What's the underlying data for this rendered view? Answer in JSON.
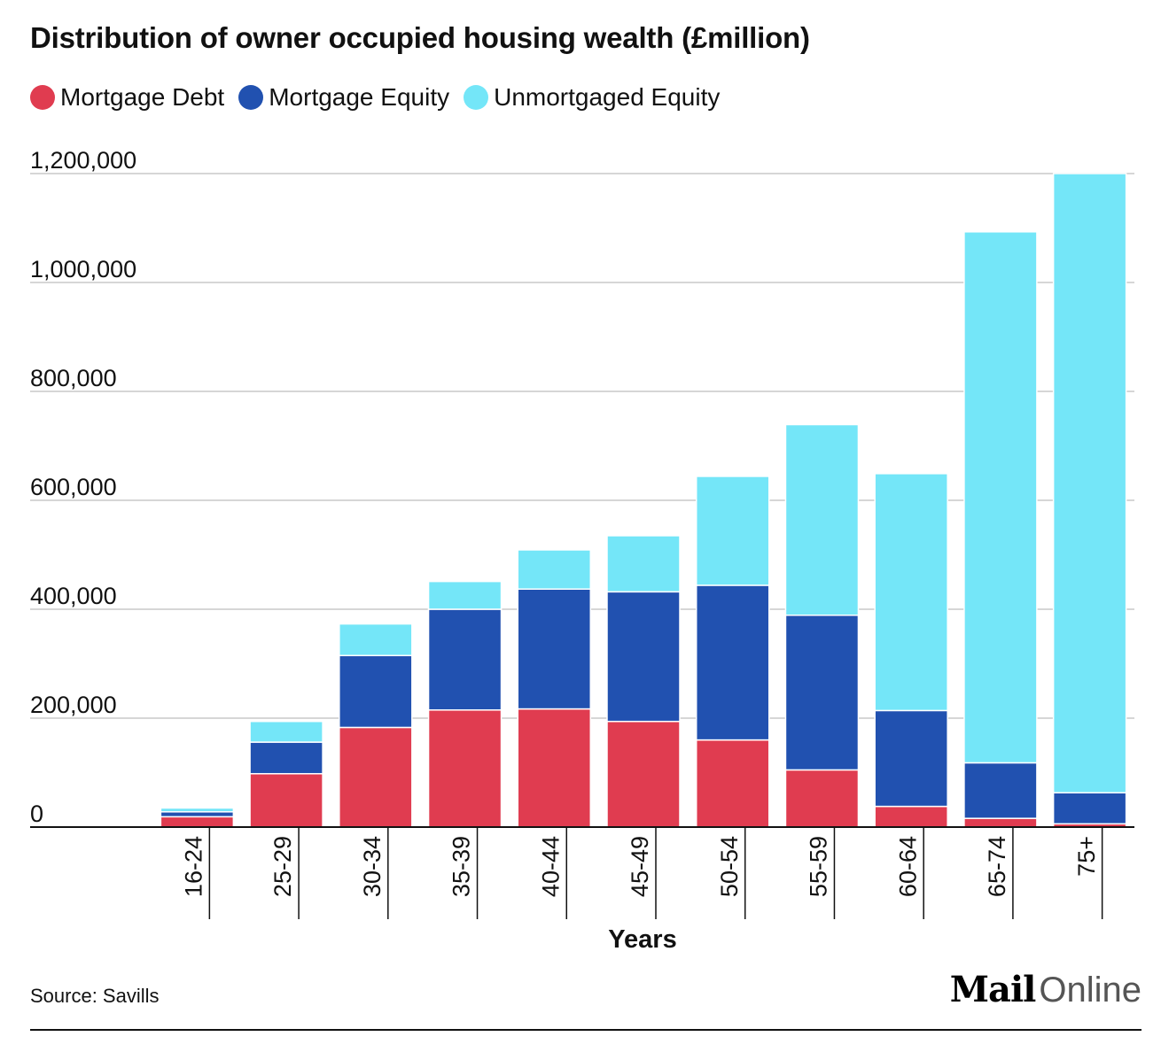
{
  "title": "Distribution of owner occupied housing wealth (£million)",
  "legend": [
    {
      "label": "Mortgage Debt",
      "color": "#e03c50"
    },
    {
      "label": "Mortgage Equity",
      "color": "#2151b0"
    },
    {
      "label": "Unmortgaged Equity",
      "color": "#74e6f8"
    }
  ],
  "source": "Source: Savills",
  "brand": {
    "bold": "Mail",
    "light": "Online"
  },
  "chart_data": {
    "type": "bar",
    "stacked": true,
    "title": "Distribution of owner occupied housing wealth (£million)",
    "xlabel": "Years",
    "ylabel": "",
    "ylim": [
      0,
      1200000
    ],
    "yticks": [
      0,
      200000,
      400000,
      600000,
      800000,
      1000000,
      1200000
    ],
    "ytick_labels": [
      "0",
      "200,000",
      "400,000",
      "600,000",
      "800,000",
      "1,000,000",
      "1,200,000"
    ],
    "grid": true,
    "legend_position": "top-left",
    "categories": [
      "16-24",
      "25-29",
      "30-34",
      "35-39",
      "40-44",
      "45-49",
      "50-54",
      "55-59",
      "60-64",
      "65-74",
      "75+"
    ],
    "series": [
      {
        "name": "Mortgage Debt",
        "color": "#e03c50",
        "values": [
          19000,
          98000,
          183000,
          215000,
          217000,
          194000,
          160000,
          105000,
          38000,
          16000,
          6000
        ]
      },
      {
        "name": "Mortgage Equity",
        "color": "#2151b0",
        "values": [
          9000,
          58000,
          132000,
          185000,
          220000,
          238000,
          284000,
          284000,
          176000,
          102000,
          57000
        ]
      },
      {
        "name": "Unmortgaged Equity",
        "color": "#74e6f8",
        "values": [
          7000,
          38000,
          58000,
          51000,
          72000,
          103000,
          200000,
          350000,
          435000,
          975000,
          1137000
        ]
      }
    ]
  }
}
